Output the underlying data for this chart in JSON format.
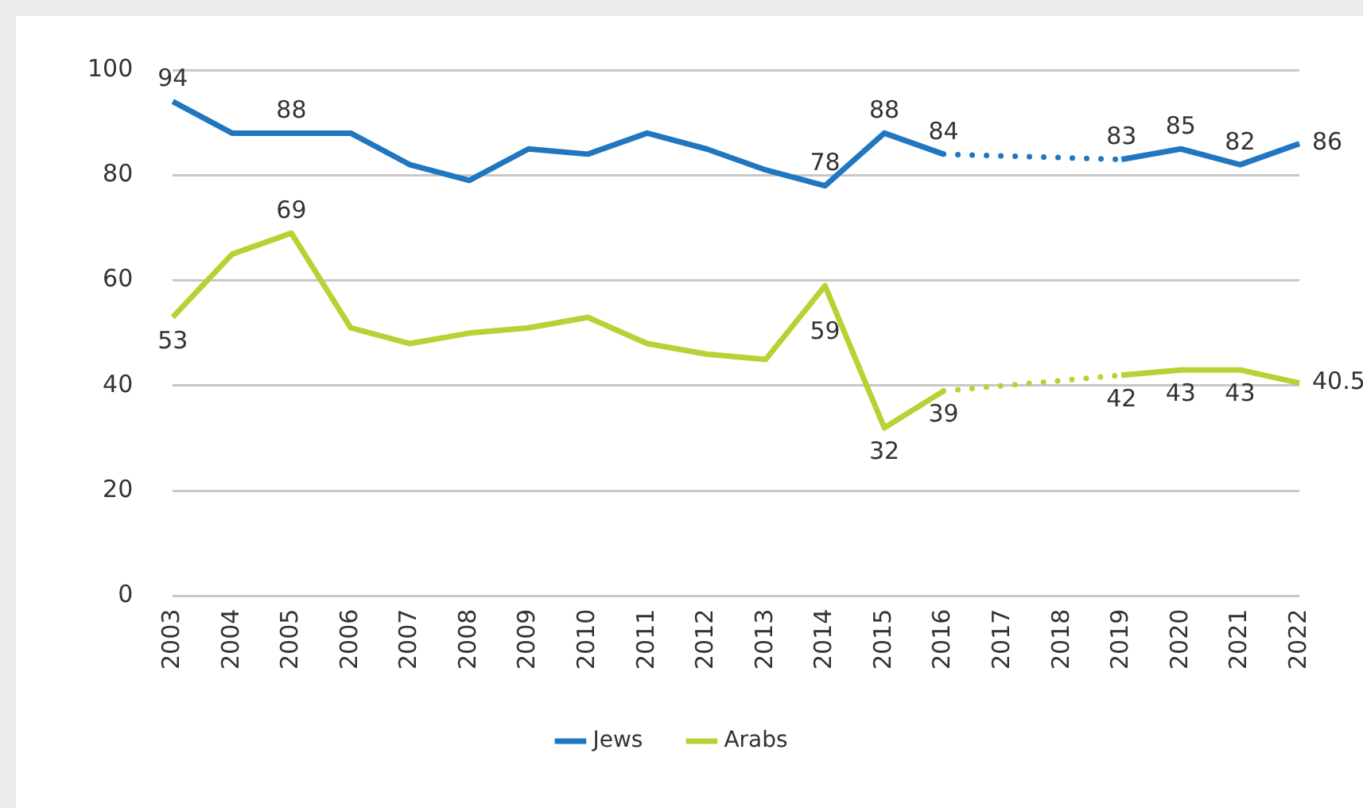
{
  "chart_data": {
    "type": "line",
    "categories": [
      "2003",
      "2004",
      "2005",
      "2006",
      "2007",
      "2008",
      "2009",
      "2010",
      "2011",
      "2012",
      "2013",
      "2014",
      "2015",
      "2016",
      "2017",
      "2018",
      "2019",
      "2020",
      "2021",
      "2022"
    ],
    "series": [
      {
        "name": "Jews",
        "color": "#2176c0",
        "values": [
          94,
          88,
          88,
          88,
          82,
          79,
          85,
          84,
          88,
          85,
          81,
          78,
          88,
          84,
          null,
          null,
          83,
          85,
          82,
          86
        ],
        "value_labels": [
          "94",
          null,
          "88",
          null,
          null,
          null,
          null,
          null,
          null,
          null,
          null,
          "78",
          "88",
          "84",
          null,
          null,
          "83",
          "85",
          "82",
          "86"
        ]
      },
      {
        "name": "Arabs",
        "color": "#b5d334",
        "values": [
          53,
          65,
          69,
          51,
          48,
          50,
          51,
          53,
          48,
          46,
          45,
          59,
          32,
          39,
          null,
          null,
          42,
          43,
          43,
          40.5
        ],
        "value_labels": [
          "53",
          null,
          "69",
          null,
          null,
          null,
          null,
          null,
          null,
          null,
          null,
          "59",
          "32",
          "39",
          null,
          null,
          "42",
          "43",
          "43",
          "40.5"
        ]
      }
    ],
    "ylim": [
      0,
      100
    ],
    "yticks": [
      0,
      20,
      40,
      60,
      80,
      100
    ],
    "grid": "y",
    "legend": "bottom"
  }
}
